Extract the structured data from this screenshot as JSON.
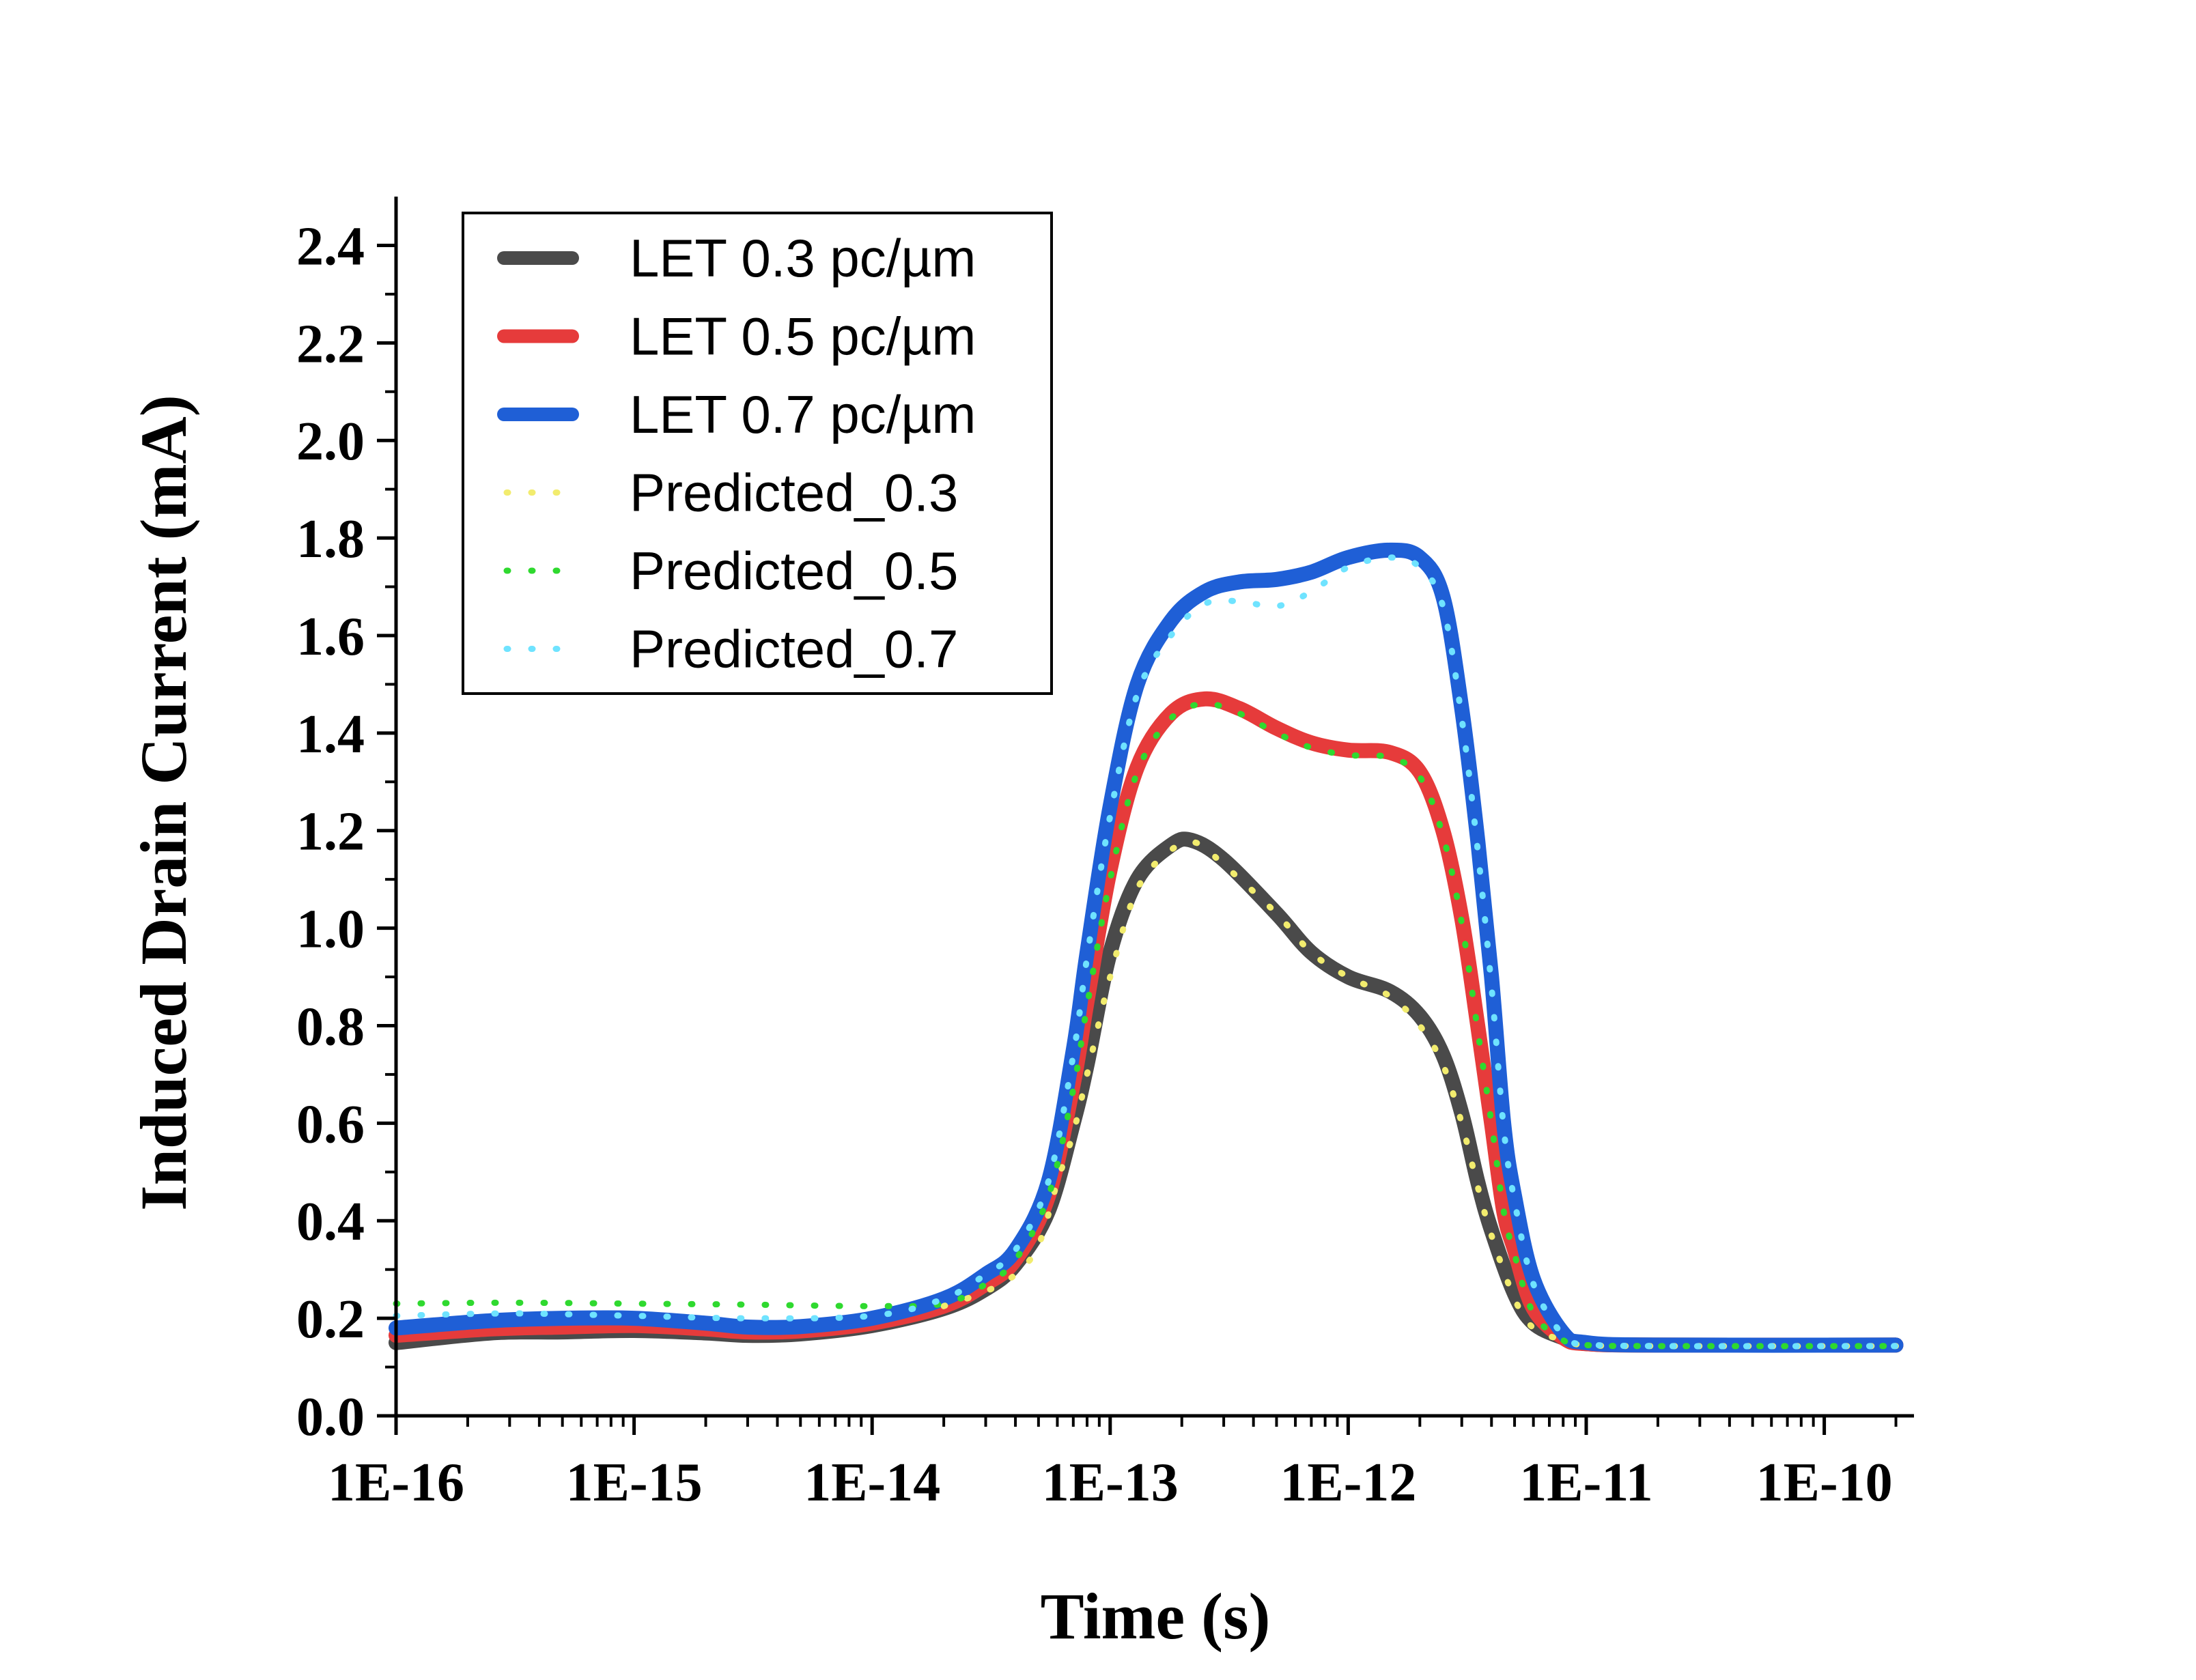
{
  "chart_data": {
    "type": "line",
    "xlabel": "Time (s)",
    "ylabel": "Induced Drain Current (mA)",
    "xscale": "log",
    "xlim": [
      1e-16,
      2e-10
    ],
    "ylim": [
      0,
      2.5
    ],
    "x_ticks": [
      {
        "value": 1e-16,
        "label": "1E-16"
      },
      {
        "value": 1e-15,
        "label": "1E-15"
      },
      {
        "value": 1e-14,
        "label": "1E-14"
      },
      {
        "value": 1e-13,
        "label": "1E-13"
      },
      {
        "value": 1e-12,
        "label": "1E-12"
      },
      {
        "value": 1e-11,
        "label": "1E-11"
      },
      {
        "value": 1e-10,
        "label": "1E-10"
      }
    ],
    "y_ticks": [
      {
        "value": 0.0,
        "label": "0.0"
      },
      {
        "value": 0.2,
        "label": "0.2"
      },
      {
        "value": 0.4,
        "label": "0.4"
      },
      {
        "value": 0.6,
        "label": "0.6"
      },
      {
        "value": 0.8,
        "label": "0.8"
      },
      {
        "value": 1.0,
        "label": "1.0"
      },
      {
        "value": 1.2,
        "label": "1.2"
      },
      {
        "value": 1.4,
        "label": "1.4"
      },
      {
        "value": 1.6,
        "label": "1.6"
      },
      {
        "value": 1.8,
        "label": "1.8"
      },
      {
        "value": 2.0,
        "label": "2.0"
      },
      {
        "value": 2.2,
        "label": "2.2"
      },
      {
        "value": 2.4,
        "label": "2.4"
      }
    ],
    "grid": false,
    "legend_position": "top-left",
    "series": [
      {
        "name": "LET 0.3 pc/µm",
        "style": "solid",
        "color": "#4a4a4a",
        "points": [
          [
            1e-16,
            0.15
          ],
          [
            2.5e-16,
            0.17
          ],
          [
            5e-16,
            0.172
          ],
          [
            1e-15,
            0.175
          ],
          [
            2e-15,
            0.17
          ],
          [
            3e-15,
            0.165
          ],
          [
            5e-15,
            0.168
          ],
          [
            1e-14,
            0.185
          ],
          [
            2e-14,
            0.22
          ],
          [
            3e-14,
            0.26
          ],
          [
            4e-14,
            0.31
          ],
          [
            5.5e-14,
            0.42
          ],
          [
            7e-14,
            0.6
          ],
          [
            8e-14,
            0.72
          ],
          [
            1e-13,
            0.95
          ],
          [
            1.3e-13,
            1.1
          ],
          [
            1.8e-13,
            1.17
          ],
          [
            2.2e-13,
            1.18
          ],
          [
            3e-13,
            1.14
          ],
          [
            5e-13,
            1.03
          ],
          [
            7e-13,
            0.95
          ],
          [
            1e-12,
            0.9
          ],
          [
            1.5e-12,
            0.87
          ],
          [
            2e-12,
            0.82
          ],
          [
            2.5e-12,
            0.74
          ],
          [
            3e-12,
            0.62
          ],
          [
            3.5e-12,
            0.48
          ],
          [
            4e-12,
            0.38
          ],
          [
            5e-12,
            0.25
          ],
          [
            6e-12,
            0.19
          ],
          [
            8e-12,
            0.16
          ],
          [
            1e-11,
            0.148
          ],
          [
            2e-11,
            0.145
          ],
          [
            2e-10,
            0.145
          ]
        ]
      },
      {
        "name": "LET 0.5 pc/µm",
        "style": "solid",
        "color": "#e63b3b",
        "points": [
          [
            1e-16,
            0.165
          ],
          [
            2.5e-16,
            0.178
          ],
          [
            5e-16,
            0.182
          ],
          [
            1e-15,
            0.185
          ],
          [
            2e-15,
            0.178
          ],
          [
            3e-15,
            0.172
          ],
          [
            5e-15,
            0.174
          ],
          [
            1e-14,
            0.19
          ],
          [
            2e-14,
            0.225
          ],
          [
            3e-14,
            0.27
          ],
          [
            4e-14,
            0.32
          ],
          [
            5.5e-14,
            0.45
          ],
          [
            7e-14,
            0.68
          ],
          [
            8e-14,
            0.85
          ],
          [
            1e-13,
            1.12
          ],
          [
            1.3e-13,
            1.33
          ],
          [
            1.8e-13,
            1.44
          ],
          [
            2.5e-13,
            1.47
          ],
          [
            3.5e-13,
            1.45
          ],
          [
            5e-13,
            1.41
          ],
          [
            7e-13,
            1.38
          ],
          [
            1e-12,
            1.365
          ],
          [
            1.5e-12,
            1.36
          ],
          [
            2e-12,
            1.32
          ],
          [
            2.5e-12,
            1.2
          ],
          [
            3e-12,
            1.02
          ],
          [
            3.5e-12,
            0.8
          ],
          [
            4e-12,
            0.6
          ],
          [
            4.5e-12,
            0.42
          ],
          [
            5e-12,
            0.34
          ],
          [
            6e-12,
            0.22
          ],
          [
            8e-12,
            0.16
          ],
          [
            1e-11,
            0.148
          ],
          [
            2e-11,
            0.145
          ],
          [
            2e-10,
            0.145
          ]
        ]
      },
      {
        "name": "LET 0.7 pc/µm",
        "style": "solid",
        "color": "#1f5fd6",
        "points": [
          [
            1e-16,
            0.18
          ],
          [
            2.5e-16,
            0.195
          ],
          [
            5e-16,
            0.2
          ],
          [
            1e-15,
            0.2
          ],
          [
            2e-15,
            0.19
          ],
          [
            3e-15,
            0.182
          ],
          [
            5e-15,
            0.183
          ],
          [
            1e-14,
            0.2
          ],
          [
            2e-14,
            0.24
          ],
          [
            3e-14,
            0.29
          ],
          [
            4e-14,
            0.34
          ],
          [
            5.5e-14,
            0.48
          ],
          [
            7e-14,
            0.75
          ],
          [
            8e-14,
            0.95
          ],
          [
            1e-13,
            1.25
          ],
          [
            1.3e-13,
            1.5
          ],
          [
            1.8e-13,
            1.63
          ],
          [
            2.5e-13,
            1.69
          ],
          [
            3.5e-13,
            1.71
          ],
          [
            5e-13,
            1.715
          ],
          [
            7e-13,
            1.73
          ],
          [
            1e-12,
            1.76
          ],
          [
            1.5e-12,
            1.775
          ],
          [
            2e-12,
            1.76
          ],
          [
            2.5e-12,
            1.68
          ],
          [
            3e-12,
            1.45
          ],
          [
            3.5e-12,
            1.18
          ],
          [
            4e-12,
            0.9
          ],
          [
            4.5e-12,
            0.6
          ],
          [
            5e-12,
            0.45
          ],
          [
            6e-12,
            0.28
          ],
          [
            8e-12,
            0.17
          ],
          [
            1e-11,
            0.15
          ],
          [
            2e-11,
            0.145
          ],
          [
            2e-10,
            0.145
          ]
        ]
      },
      {
        "name": "Predicted_0.3",
        "style": "dotted",
        "color": "#f2ec6e",
        "points": [
          [
            2e-14,
            0.225
          ],
          [
            3e-14,
            0.255
          ],
          [
            4e-14,
            0.29
          ],
          [
            5e-14,
            0.35
          ],
          [
            6e-14,
            0.48
          ],
          [
            7e-14,
            0.58
          ],
          [
            8e-14,
            0.7
          ],
          [
            1e-13,
            0.9
          ],
          [
            1.3e-13,
            1.08
          ],
          [
            1.8e-13,
            1.16
          ],
          [
            2.3e-13,
            1.175
          ],
          [
            3e-13,
            1.13
          ],
          [
            5e-13,
            1.03
          ],
          [
            7e-13,
            0.95
          ],
          [
            1e-12,
            0.9
          ],
          [
            1.5e-12,
            0.86
          ],
          [
            2e-12,
            0.8
          ],
          [
            2.5e-12,
            0.72
          ],
          [
            3e-12,
            0.6
          ],
          [
            3.5e-12,
            0.47
          ],
          [
            4e-12,
            0.37
          ],
          [
            5e-12,
            0.24
          ],
          [
            6e-12,
            0.18
          ],
          [
            8e-12,
            0.155
          ],
          [
            1e-11,
            0.145
          ],
          [
            2e-11,
            0.143
          ],
          [
            2e-10,
            0.143
          ]
        ]
      },
      {
        "name": "Predicted_0.5",
        "style": "dotted",
        "color": "#2fd92f",
        "points": [
          [
            1e-16,
            0.23
          ],
          [
            3e-16,
            0.232
          ],
          [
            1e-15,
            0.23
          ],
          [
            3e-15,
            0.228
          ],
          [
            1e-14,
            0.225
          ],
          [
            2e-14,
            0.23
          ],
          [
            3e-14,
            0.27
          ],
          [
            4e-14,
            0.32
          ],
          [
            5.5e-14,
            0.45
          ],
          [
            7e-14,
            0.67
          ],
          [
            8e-14,
            0.84
          ],
          [
            1e-13,
            1.1
          ],
          [
            1.3e-13,
            1.32
          ],
          [
            1.8e-13,
            1.43
          ],
          [
            2.5e-13,
            1.46
          ],
          [
            3.5e-13,
            1.44
          ],
          [
            5e-13,
            1.4
          ],
          [
            7e-13,
            1.37
          ],
          [
            1e-12,
            1.355
          ],
          [
            1.5e-12,
            1.35
          ],
          [
            2e-12,
            1.31
          ],
          [
            2.5e-12,
            1.19
          ],
          [
            3e-12,
            1.01
          ],
          [
            3.5e-12,
            0.79
          ],
          [
            4e-12,
            0.6
          ],
          [
            4.5e-12,
            0.42
          ],
          [
            5e-12,
            0.33
          ],
          [
            6e-12,
            0.21
          ],
          [
            8e-12,
            0.155
          ],
          [
            1e-11,
            0.145
          ],
          [
            2e-11,
            0.143
          ],
          [
            2e-10,
            0.143
          ]
        ]
      },
      {
        "name": "Predicted_0.7",
        "style": "dotted",
        "color": "#6fe3ff",
        "points": [
          [
            1e-16,
            0.205
          ],
          [
            3e-16,
            0.21
          ],
          [
            1e-15,
            0.205
          ],
          [
            3e-15,
            0.2
          ],
          [
            1e-14,
            0.205
          ],
          [
            2e-14,
            0.24
          ],
          [
            3e-14,
            0.29
          ],
          [
            4e-14,
            0.34
          ],
          [
            5.5e-14,
            0.48
          ],
          [
            7e-14,
            0.74
          ],
          [
            8e-14,
            0.94
          ],
          [
            1e-13,
            1.23
          ],
          [
            1.3e-13,
            1.48
          ],
          [
            1.8e-13,
            1.6
          ],
          [
            2.5e-13,
            1.665
          ],
          [
            3.5e-13,
            1.67
          ],
          [
            5e-13,
            1.66
          ],
          [
            7e-13,
            1.69
          ],
          [
            1e-12,
            1.74
          ],
          [
            1.5e-12,
            1.76
          ],
          [
            2e-12,
            1.74
          ],
          [
            2.5e-12,
            1.66
          ],
          [
            3e-12,
            1.43
          ],
          [
            3.5e-12,
            1.16
          ],
          [
            4e-12,
            0.88
          ],
          [
            4.5e-12,
            0.59
          ],
          [
            5e-12,
            0.44
          ],
          [
            6e-12,
            0.27
          ],
          [
            8e-12,
            0.165
          ],
          [
            1e-11,
            0.147
          ],
          [
            2e-11,
            0.143
          ],
          [
            2e-10,
            0.143
          ]
        ]
      }
    ]
  }
}
